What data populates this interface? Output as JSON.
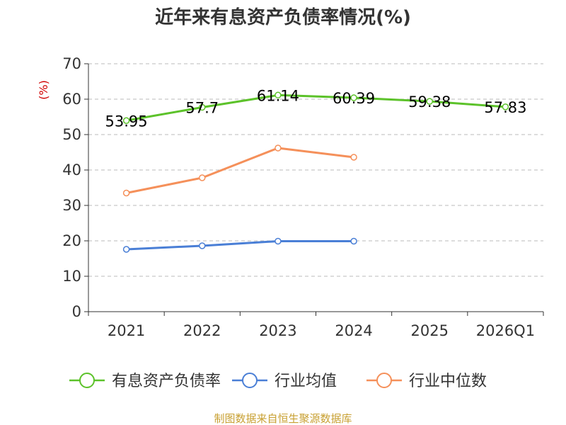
{
  "chart_data": {
    "type": "line",
    "title": "近年来有息资产负债率情况(%)",
    "ylabel": "(%)",
    "categories": [
      "2021",
      "2022",
      "2023",
      "2024",
      "2025",
      "2026Q1"
    ],
    "ylim": [
      0,
      70
    ],
    "yticks": [
      0,
      10,
      20,
      30,
      40,
      50,
      60,
      70
    ],
    "grid": true,
    "legend_position": "bottom",
    "series": [
      {
        "name": "有息资产负债率",
        "color": "#5cc22a",
        "values": [
          53.95,
          57.7,
          61.14,
          60.39,
          59.38,
          57.83
        ],
        "labels": [
          "53.95",
          "57.7",
          "61.14",
          "60.39",
          "59.38",
          "57.83"
        ]
      },
      {
        "name": "行业均值",
        "color": "#4a7fd6",
        "values": [
          17.6,
          18.6,
          19.9,
          19.9,
          null,
          null
        ]
      },
      {
        "name": "行业中位数",
        "color": "#f5905a",
        "values": [
          33.5,
          37.8,
          46.2,
          43.6,
          null,
          null
        ]
      }
    ]
  },
  "source": "制图数据来自恒生聚源数据库"
}
